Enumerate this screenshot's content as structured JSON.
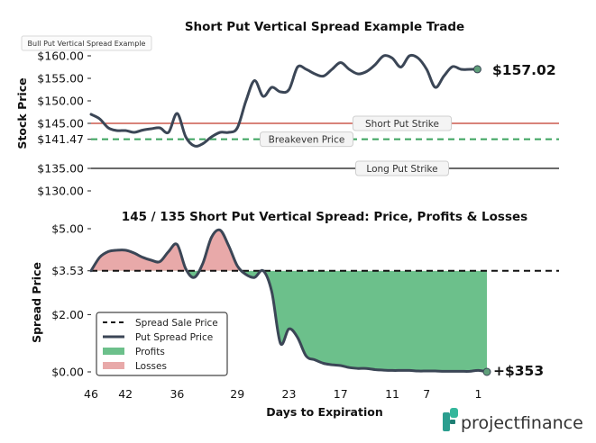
{
  "badge": "Bull Put Vertical Spread Example",
  "brand": "projectfinance",
  "chart_data": [
    {
      "type": "line",
      "title": "Short Put Vertical Spread Example Trade",
      "ylabel": "Stock Price",
      "ylim": [
        130,
        161
      ],
      "yticks": [
        "$130.00",
        "$135.00",
        "$141.47",
        "$145.00",
        "$150.00",
        "$155.00",
        "$160.00"
      ],
      "ytick_values": [
        130,
        135,
        141.47,
        145,
        150,
        155,
        160
      ],
      "x": [
        46,
        45,
        44,
        43,
        42,
        41,
        40,
        39,
        38,
        37,
        36,
        35,
        34,
        33,
        32,
        31,
        30,
        29,
        28,
        27,
        26,
        25,
        24,
        23,
        22,
        21,
        20,
        19,
        18,
        17,
        16,
        15,
        14,
        13,
        12,
        11,
        10,
        9,
        8,
        7,
        6,
        5,
        4,
        3,
        2,
        1,
        0
      ],
      "values": [
        147,
        146,
        144,
        143.4,
        143.4,
        143,
        143.5,
        143.8,
        144,
        143,
        147.2,
        142,
        140,
        140.5,
        142,
        143,
        143,
        144,
        150,
        154.5,
        151,
        153,
        152,
        152.5,
        157.5,
        157,
        156,
        155.5,
        157,
        158.5,
        157,
        156,
        156.5,
        158,
        160,
        159.5,
        157.5,
        160,
        159.5,
        157,
        153,
        155.5,
        157.6,
        157,
        157,
        157.02,
        157.02
      ],
      "last_label": "$157.02",
      "reference_lines": [
        {
          "name": "Short Put Strike",
          "value": 145,
          "color": "#c0392b",
          "style": "solid"
        },
        {
          "name": "Breakeven Price",
          "value": 141.47,
          "color": "#3aa35e",
          "style": "dashed"
        },
        {
          "name": "Long Put Strike",
          "value": 135,
          "color": "#111111",
          "style": "solid"
        }
      ]
    },
    {
      "type": "area",
      "title": "145 / 135 Short Put Vertical Spread: Price, Profits & Losses",
      "ylabel": "Spread Price",
      "xlabel": "Days to Expiration",
      "ylim": [
        -0.25,
        5.3
      ],
      "yticks": [
        "$0.00",
        "$2.00",
        "$3.53",
        "$5.00"
      ],
      "ytick_values": [
        0,
        2,
        3.53,
        5
      ],
      "xticks": [
        "46",
        "42",
        "36",
        "29",
        "23",
        "17",
        "11",
        "7",
        "1"
      ],
      "xtick_values": [
        46,
        42,
        36,
        29,
        23,
        17,
        11,
        7,
        1
      ],
      "x": [
        46,
        45,
        44,
        43,
        42,
        41,
        40,
        39,
        38,
        37,
        36,
        35,
        34,
        33,
        32,
        31,
        30,
        29,
        28,
        27,
        26,
        25,
        24,
        23,
        22,
        21,
        20,
        19,
        18,
        17,
        16,
        15,
        14,
        13,
        12,
        11,
        10,
        9,
        8,
        7,
        6,
        5,
        4,
        3,
        2,
        1,
        0
      ],
      "values": [
        3.53,
        4.0,
        4.2,
        4.25,
        4.25,
        4.15,
        4.0,
        3.9,
        3.85,
        4.2,
        4.45,
        3.6,
        3.3,
        3.8,
        4.7,
        4.95,
        4.4,
        3.7,
        3.4,
        3.3,
        3.53,
        2.8,
        1.0,
        1.5,
        1.2,
        0.55,
        0.42,
        0.3,
        0.25,
        0.22,
        0.15,
        0.12,
        0.12,
        0.08,
        0.06,
        0.05,
        0.05,
        0.05,
        0.03,
        0.03,
        0.03,
        0.02,
        0.02,
        0.02,
        0.02,
        0.05,
        0
      ],
      "sale_price": 3.53,
      "last_label": "+$353",
      "legend": [
        "Spread Sale Price",
        "Put Spread Price",
        "Profits",
        "Losses"
      ],
      "legend_position": "lower-left",
      "colors": {
        "profits": "#6cc08b",
        "losses": "#e8a9a9",
        "line": "#3b4656",
        "sale": "#111111"
      }
    }
  ]
}
